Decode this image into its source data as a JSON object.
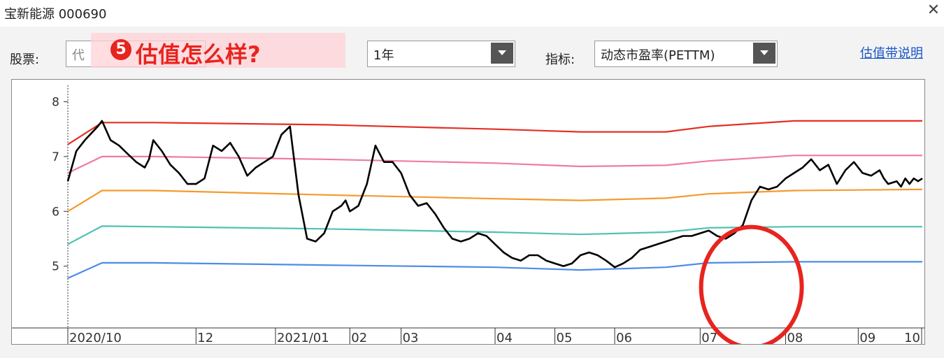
{
  "window": {
    "title": "宝新能源 000690",
    "close_glyph": "✕"
  },
  "toolbar": {
    "stock_label": "股票:",
    "stock_value": "代",
    "period_value": "1年",
    "indicator_label": "指标:",
    "indicator_value": "动态市盈率(PETTM)",
    "help_link": "估值带说明"
  },
  "banner": {
    "number": "5",
    "text": "估值怎么样?"
  },
  "colors": {
    "band_red": "#e33025",
    "band_pink": "#f07aa6",
    "band_orange": "#f59a2e",
    "band_teal": "#4fc2b3",
    "band_blue": "#4d8ce6",
    "pe_line": "#000000",
    "annotation_circle": "#e8241e"
  },
  "chart_data": {
    "type": "line",
    "title": "",
    "ylim": [
      4.0,
      8.3
    ],
    "yticks": [
      "8",
      "7",
      "6",
      "5"
    ],
    "x_labels": [
      "2020/10",
      "12",
      "2021/01",
      "02",
      "03",
      "04",
      "05",
      "06",
      "07",
      "08",
      "09",
      "10"
    ],
    "x_label_pos": [
      0,
      0.15,
      0.243,
      0.33,
      0.39,
      0.5,
      0.57,
      0.64,
      0.74,
      0.84,
      0.925,
      1.0
    ],
    "series": [
      {
        "color": "#e33025",
        "x": [
          0,
          0.04,
          0.1,
          0.3,
          0.5,
          0.6,
          0.7,
          0.75,
          0.85,
          1.0
        ],
        "y": [
          7.22,
          7.62,
          7.62,
          7.58,
          7.5,
          7.45,
          7.45,
          7.55,
          7.65,
          7.65
        ]
      },
      {
        "color": "#f07aa6",
        "x": [
          0,
          0.04,
          0.1,
          0.3,
          0.5,
          0.6,
          0.7,
          0.75,
          0.85,
          1.0
        ],
        "y": [
          6.7,
          7.0,
          7.0,
          6.95,
          6.88,
          6.82,
          6.84,
          6.92,
          7.02,
          7.02
        ]
      },
      {
        "color": "#f59a2e",
        "x": [
          0,
          0.04,
          0.1,
          0.3,
          0.5,
          0.6,
          0.7,
          0.75,
          0.85,
          1.0
        ],
        "y": [
          6.0,
          6.38,
          6.38,
          6.3,
          6.23,
          6.2,
          6.24,
          6.32,
          6.38,
          6.4
        ]
      },
      {
        "color": "#4fc2b3",
        "x": [
          0,
          0.04,
          0.1,
          0.3,
          0.5,
          0.6,
          0.7,
          0.75,
          0.85,
          1.0
        ],
        "y": [
          5.4,
          5.73,
          5.72,
          5.68,
          5.62,
          5.58,
          5.62,
          5.7,
          5.72,
          5.72
        ]
      },
      {
        "color": "#4d8ce6",
        "x": [
          0,
          0.04,
          0.1,
          0.3,
          0.5,
          0.6,
          0.7,
          0.75,
          0.85,
          1.0
        ],
        "y": [
          4.78,
          5.06,
          5.06,
          5.02,
          4.98,
          4.93,
          4.98,
          5.06,
          5.08,
          5.08
        ]
      },
      {
        "color": "#000000",
        "x": [
          0,
          0.01,
          0.02,
          0.035,
          0.04,
          0.05,
          0.06,
          0.07,
          0.08,
          0.09,
          0.095,
          0.1,
          0.11,
          0.12,
          0.13,
          0.14,
          0.15,
          0.16,
          0.17,
          0.18,
          0.19,
          0.2,
          0.21,
          0.22,
          0.23,
          0.24,
          0.25,
          0.26,
          0.27,
          0.28,
          0.29,
          0.3,
          0.31,
          0.32,
          0.325,
          0.33,
          0.34,
          0.35,
          0.36,
          0.37,
          0.38,
          0.39,
          0.4,
          0.41,
          0.42,
          0.43,
          0.44,
          0.45,
          0.46,
          0.47,
          0.48,
          0.49,
          0.5,
          0.51,
          0.52,
          0.53,
          0.54,
          0.55,
          0.56,
          0.57,
          0.58,
          0.59,
          0.6,
          0.61,
          0.62,
          0.63,
          0.64,
          0.65,
          0.66,
          0.67,
          0.68,
          0.69,
          0.7,
          0.71,
          0.72,
          0.73,
          0.74,
          0.75,
          0.76,
          0.77,
          0.78,
          0.79,
          0.8,
          0.81,
          0.82,
          0.83,
          0.84,
          0.85,
          0.86,
          0.87,
          0.88,
          0.89,
          0.9,
          0.91,
          0.92,
          0.93,
          0.94,
          0.95,
          0.955,
          0.96,
          0.97,
          0.975,
          0.98,
          0.985,
          0.99,
          0.995,
          1.0
        ],
        "y": [
          6.55,
          7.1,
          7.3,
          7.55,
          7.65,
          7.3,
          7.2,
          7.05,
          6.9,
          6.8,
          6.95,
          7.3,
          7.1,
          6.85,
          6.7,
          6.5,
          6.5,
          6.6,
          7.2,
          7.1,
          7.25,
          7.0,
          6.65,
          6.8,
          6.9,
          7.0,
          7.4,
          7.55,
          6.3,
          5.5,
          5.45,
          5.6,
          6.0,
          6.1,
          6.2,
          6.0,
          6.1,
          6.5,
          7.2,
          6.9,
          6.9,
          6.7,
          6.3,
          6.1,
          6.15,
          5.95,
          5.7,
          5.5,
          5.45,
          5.5,
          5.6,
          5.55,
          5.4,
          5.25,
          5.15,
          5.1,
          5.2,
          5.2,
          5.1,
          5.05,
          5.0,
          5.05,
          5.2,
          5.25,
          5.2,
          5.1,
          4.98,
          5.05,
          5.15,
          5.3,
          5.35,
          5.4,
          5.45,
          5.5,
          5.55,
          5.55,
          5.6,
          5.65,
          5.55,
          5.5,
          5.6,
          5.75,
          6.2,
          6.45,
          6.4,
          6.45,
          6.6,
          6.7,
          6.8,
          6.95,
          6.75,
          6.85,
          6.5,
          6.75,
          6.9,
          6.7,
          6.65,
          6.75,
          6.6,
          6.5,
          6.55,
          6.45,
          6.6,
          6.5,
          6.6,
          6.55,
          6.6
        ]
      }
    ],
    "annotation": {
      "shape": "circle",
      "color": "#e8241e",
      "cx": 0.8,
      "cy": 5.0
    }
  }
}
